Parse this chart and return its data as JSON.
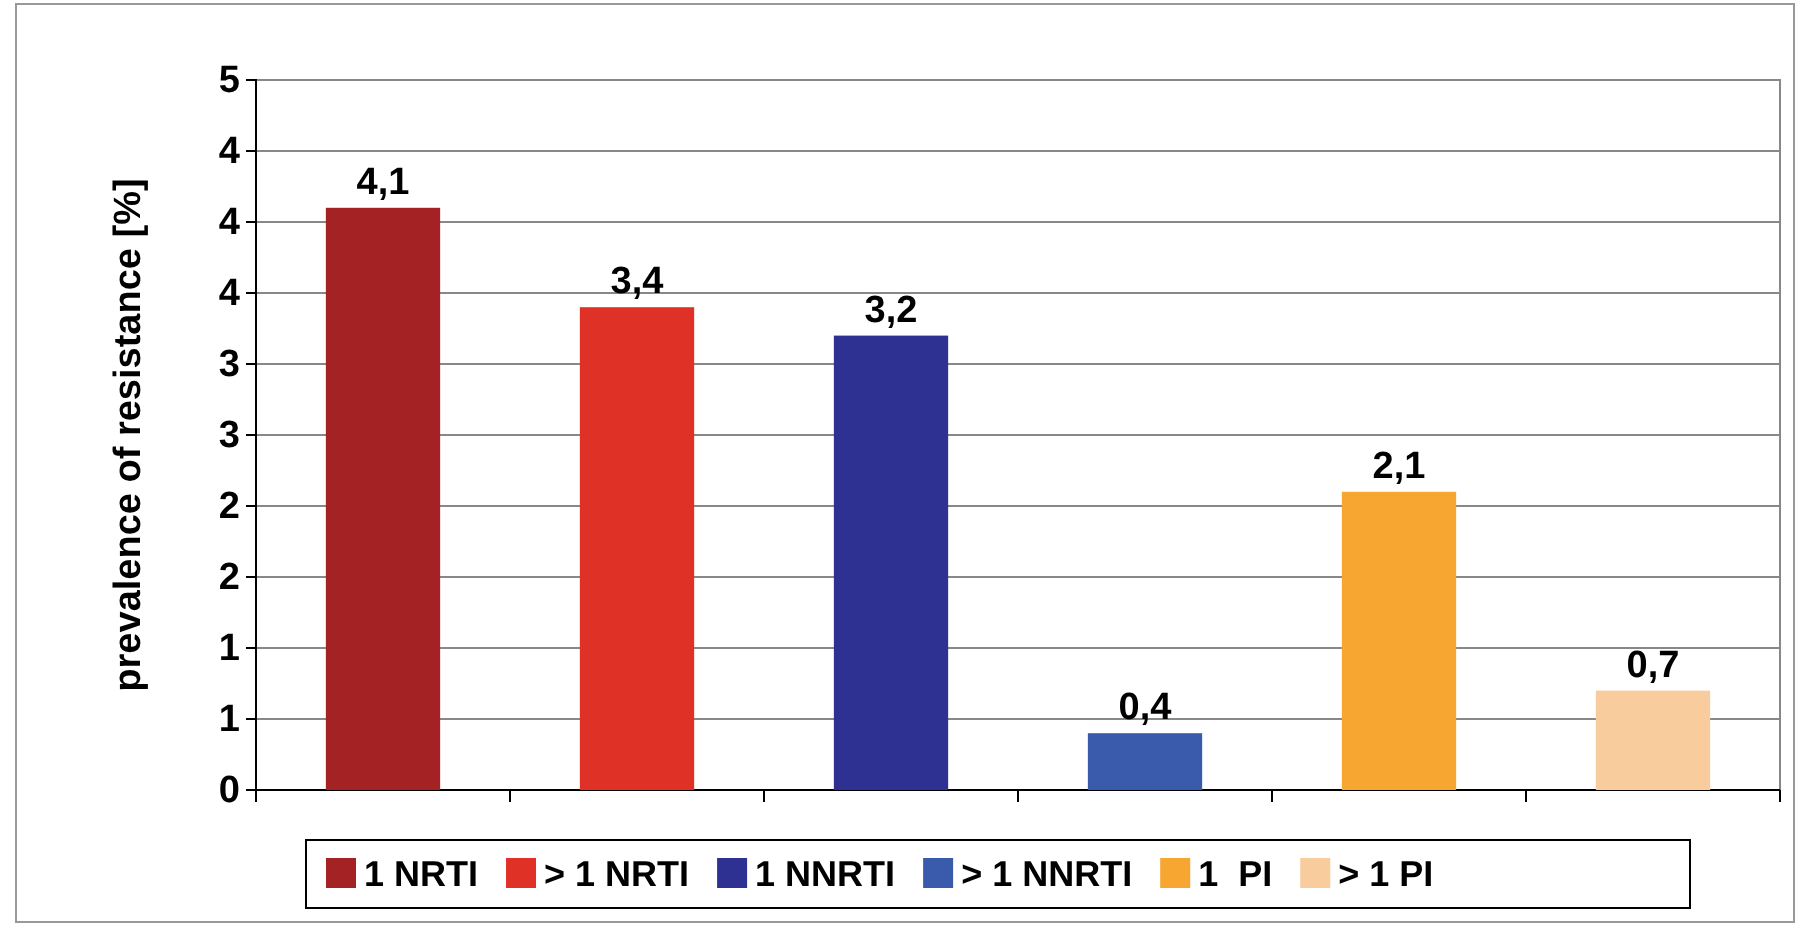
{
  "chart_data": {
    "type": "bar",
    "ylabel": "prevalence of resistance [%]",
    "categories": [
      null,
      null,
      null,
      null,
      null,
      null
    ],
    "series": [
      {
        "name": "1 NRTI",
        "color": "#a52224",
        "values": [
          4.1,
          null,
          null,
          null,
          null,
          null
        ],
        "value_labels": [
          "4,1",
          null,
          null,
          null,
          null,
          null
        ]
      },
      {
        "name": "> 1 NRTI",
        "color": "#e03127",
        "values": [
          null,
          3.4,
          null,
          null,
          null,
          null
        ],
        "value_labels": [
          null,
          "3,4",
          null,
          null,
          null,
          null
        ]
      },
      {
        "name": "1 NNRTI",
        "color": "#2e3192",
        "values": [
          null,
          null,
          3.2,
          null,
          null,
          null
        ],
        "value_labels": [
          null,
          null,
          "3,2",
          null,
          null,
          null
        ]
      },
      {
        "name": "> 1 NNRTI",
        "color": "#3a5bab",
        "values": [
          null,
          null,
          null,
          0.4,
          null,
          null
        ],
        "value_labels": [
          null,
          null,
          null,
          "0,4",
          null,
          null
        ]
      },
      {
        "name": "1  PI",
        "color": "#f7a731",
        "values": [
          null,
          null,
          null,
          null,
          2.1,
          null
        ],
        "value_labels": [
          null,
          null,
          null,
          null,
          "2,1",
          null
        ]
      },
      {
        "name": "> 1 PI",
        "color": "#f9cc9e",
        "values": [
          null,
          null,
          null,
          null,
          null,
          0.7
        ],
        "value_labels": [
          null,
          null,
          null,
          null,
          null,
          "0,7"
        ]
      }
    ],
    "ylim": [
      0,
      5
    ],
    "yticks": [
      0,
      {
        "value": 0.5,
        "label": "1"
      },
      1,
      {
        "value": 1.5,
        "label": "2"
      },
      2,
      {
        "value": 2.5,
        "label": "3"
      },
      3,
      {
        "value": 3.5,
        "label": "4"
      },
      4,
      {
        "value": 4.5,
        "label": "4"
      },
      5
    ],
    "grid": "y",
    "legend": "bottom",
    "tick_labels": "y"
  }
}
